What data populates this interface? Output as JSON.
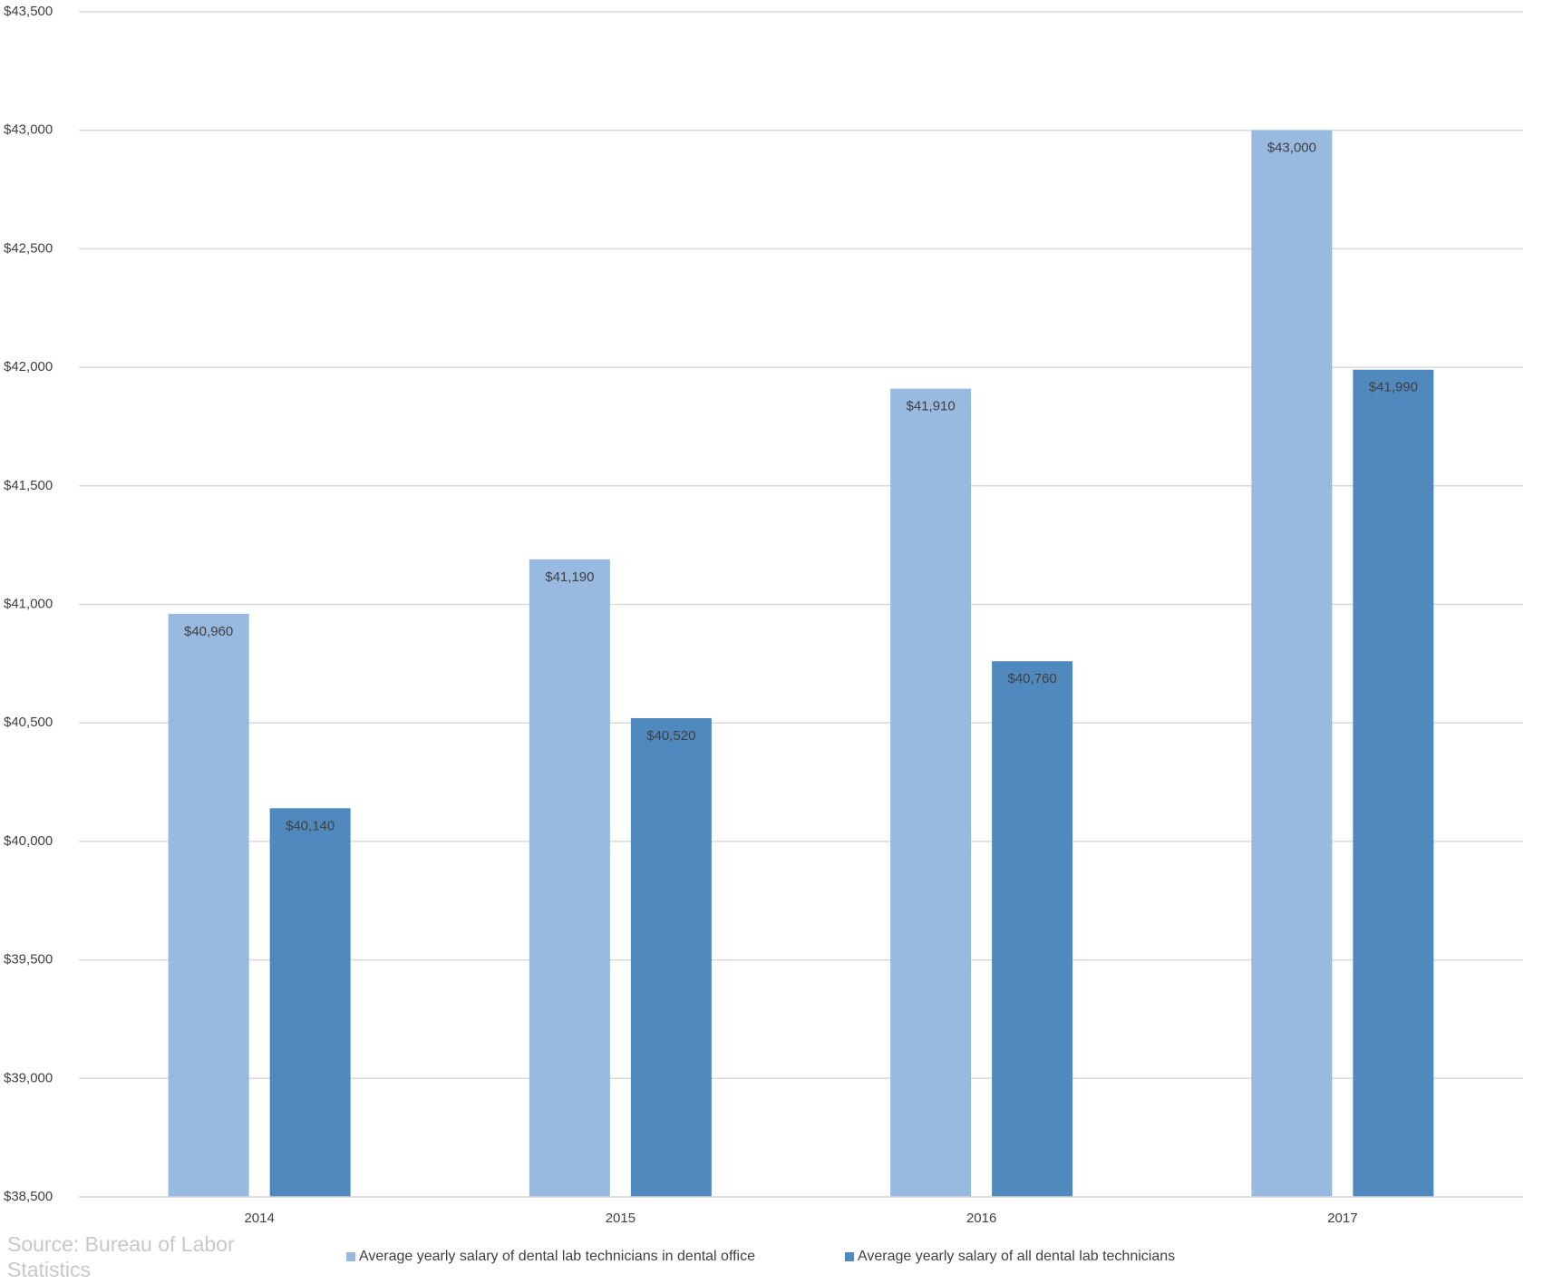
{
  "chart_data": {
    "type": "bar",
    "categories": [
      "2014",
      "2015",
      "2016",
      "2017"
    ],
    "series": [
      {
        "name": "Average yearly salary of dental lab technicians in dental office",
        "color": "#98b9e0",
        "values": [
          40960,
          41190,
          41910,
          43000
        ],
        "value_labels": [
          "$40,960",
          "$41,190",
          "$41,910",
          "$43,000"
        ]
      },
      {
        "name": "Average yearly salary of all dental lab technicians",
        "color": "#4f89bd",
        "values": [
          40140,
          40520,
          40760,
          41990
        ],
        "value_labels": [
          "$40,140",
          "$40,520",
          "$40,760",
          "$41,990"
        ]
      }
    ],
    "ylim": [
      38500,
      43500
    ],
    "yticks": [
      {
        "value": 38500,
        "label": "$38,500"
      },
      {
        "value": 39000,
        "label": "$39,000"
      },
      {
        "value": 39500,
        "label": "$39,500"
      },
      {
        "value": 40000,
        "label": "$40,000"
      },
      {
        "value": 40500,
        "label": "$40,500"
      },
      {
        "value": 41000,
        "label": "$41,000"
      },
      {
        "value": 41500,
        "label": "$41,500"
      },
      {
        "value": 42000,
        "label": "$42,000"
      },
      {
        "value": 42500,
        "label": "$42,500"
      },
      {
        "value": 43000,
        "label": "$43,000"
      },
      {
        "value": 43500,
        "label": "$43,500"
      }
    ],
    "grid": true,
    "legend": "bottom",
    "source": "Source: Bureau of Labor Statistics"
  }
}
